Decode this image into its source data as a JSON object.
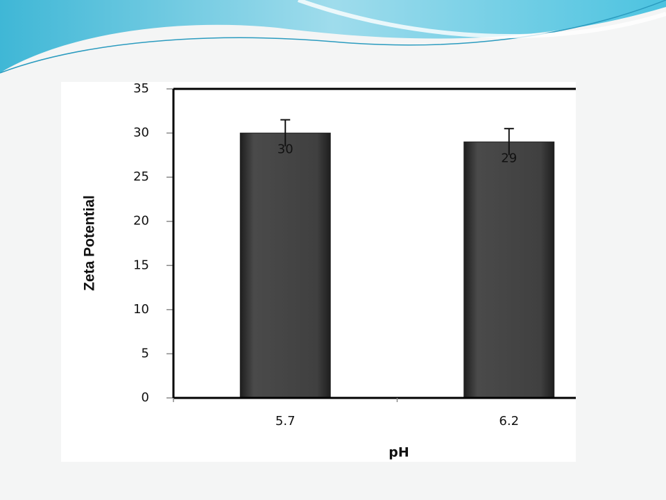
{
  "chart_data": {
    "type": "bar",
    "y_label": "Zeta Potential",
    "x_label": "pH",
    "categories": [
      "5.7",
      "6.2"
    ],
    "values": [
      30,
      29
    ],
    "errors": [
      1.5,
      1.5
    ],
    "color": "#3d3d3d",
    "ylim": [
      0,
      35
    ],
    "yticks": [
      0,
      5,
      10,
      15,
      20,
      25,
      30,
      35
    ],
    "grid": false
  }
}
